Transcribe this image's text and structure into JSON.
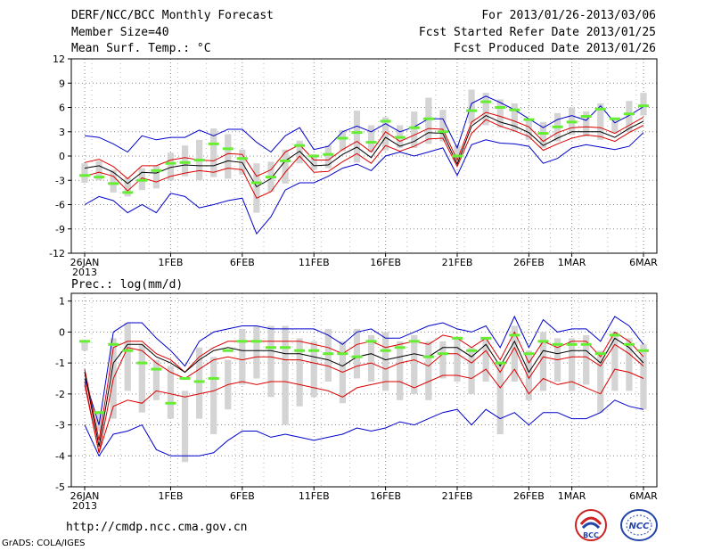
{
  "header": {
    "title": "DERF/NCC/BCC Monthly Forecast",
    "member_size": "Member Size=40",
    "variable1": "Mean Surf. Temp.: °C",
    "period": "For 2013/01/26-2013/03/06",
    "started": "Fcst Started Refer Date 2013/01/25",
    "produced": "Fcst Produced Date 2013/01/26"
  },
  "footer": {
    "url": "http://cmdp.ncc.cma.gov.cn",
    "credit": "GrADS: COLA/IGES",
    "logo_left": "BCC",
    "logo_right": "NCC"
  },
  "colors": {
    "envelope": "#0000cc",
    "spread": "#dd0000",
    "mean": "#000000",
    "box": "#d4d4d4",
    "marker": "#66ee33",
    "grid": "#888888"
  },
  "chart_data": [
    {
      "type": "line",
      "name": "temperature",
      "title": "Mean Surf. Temp.: °C",
      "ylim": [
        -12,
        12
      ],
      "yticks": [
        -12,
        -9,
        -6,
        -3,
        0,
        3,
        6,
        9,
        12
      ],
      "ytick_labels": [
        "-12",
        "-9",
        "-6",
        "-3",
        "0",
        "3",
        "6",
        "9",
        "12"
      ],
      "xtick_labels": [
        {
          "day": 0,
          "label": "26JAN"
        },
        {
          "day": 6,
          "label": "1FEB"
        },
        {
          "day": 11,
          "label": "6FEB"
        },
        {
          "day": 16,
          "label": "11FEB"
        },
        {
          "day": 21,
          "label": "16FEB"
        },
        {
          "day": 26,
          "label": "21FEB"
        },
        {
          "day": 31,
          "label": "26FEB"
        },
        {
          "day": 34,
          "label": "1MAR"
        },
        {
          "day": 39,
          "label": "6MAR"
        }
      ],
      "year_label": "2013",
      "series": [
        {
          "name": "max",
          "values": [
            2.5,
            2.3,
            1.5,
            0.5,
            2.5,
            2,
            2.3,
            2.3,
            3.2,
            2.5,
            3.3,
            3.3,
            1.7,
            0.5,
            2.5,
            3.5,
            0.8,
            1.2,
            3,
            3.7,
            3,
            4,
            3,
            3.6,
            4.6,
            4.6,
            1,
            6.5,
            7.4,
            6.6,
            5.7,
            4.6,
            3.5,
            4.5,
            5,
            4.4,
            6.2,
            4.1,
            5,
            6.1
          ]
        },
        {
          "name": "upper",
          "values": [
            -0.8,
            -0.4,
            -1.3,
            -2.8,
            -1.2,
            -1.2,
            -0.5,
            -0.2,
            -0.5,
            -0.6,
            0.3,
            0.2,
            -2.5,
            -1.7,
            0.5,
            1.4,
            -0.5,
            -0.5,
            0.8,
            1.8,
            0.5,
            3,
            1.8,
            2.6,
            3.4,
            3.3,
            -0.5,
            4.2,
            5.4,
            4.9,
            4.3,
            3.6,
            1.8,
            2.9,
            3.5,
            3.6,
            3.5,
            2.8,
            3.8,
            4.8
          ]
        },
        {
          "name": "mean",
          "values": [
            -1.5,
            -1.2,
            -2,
            -3.4,
            -2,
            -2.1,
            -1.4,
            -1.1,
            -1.2,
            -1.2,
            -0.6,
            -0.8,
            -3.8,
            -2.8,
            -0.6,
            0.6,
            -1.2,
            -1.1,
            0.2,
            1.1,
            -0.2,
            2.3,
            1.2,
            1.8,
            2.9,
            2.8,
            -1,
            3.7,
            5,
            4.2,
            3.7,
            2.9,
            1.3,
            2.2,
            3,
            3,
            3,
            2.3,
            3.4,
            4.3
          ]
        },
        {
          "name": "lower",
          "values": [
            -2.5,
            -2,
            -2.5,
            -4.3,
            -2.7,
            -3.2,
            -2.5,
            -2.1,
            -1.8,
            -2,
            -1.5,
            -1.7,
            -5.2,
            -4.4,
            -2,
            0,
            -2,
            -1.9,
            -0.7,
            0.3,
            -0.9,
            1.3,
            0.6,
            1.2,
            2.1,
            2.2,
            -1.3,
            2.8,
            4.5,
            3.7,
            3.1,
            2.4,
            0.7,
            1.5,
            2.2,
            2.6,
            2.4,
            1.8,
            2.9,
            3.8
          ]
        },
        {
          "name": "min",
          "values": [
            -6,
            -5,
            -5.5,
            -7,
            -6,
            -7,
            -4.6,
            -5,
            -6.4,
            -6,
            -5.5,
            -5.2,
            -9.6,
            -7.5,
            -4.2,
            -3.3,
            -3.3,
            -2.5,
            -1.5,
            -1,
            -1.8,
            0,
            0.5,
            0,
            0.5,
            1,
            -2.4,
            1.4,
            2,
            1.6,
            1.5,
            1.2,
            -0.9,
            -0.3,
            1,
            1.4,
            1.1,
            0.8,
            1.2,
            2.9
          ]
        }
      ],
      "boxes": [
        {
          "low": -3.3,
          "high": -0.9
        },
        {
          "low": -3,
          "high": -0.6
        },
        {
          "low": -4.5,
          "high": -1.7
        },
        {
          "low": -5,
          "high": -2.7
        },
        {
          "low": -4.2,
          "high": -1.5
        },
        {
          "low": -4,
          "high": -1.2
        },
        {
          "low": -3,
          "high": 0.4
        },
        {
          "low": -2.5,
          "high": 1.3
        },
        {
          "low": -3,
          "high": 2
        },
        {
          "low": -2.6,
          "high": 3.4
        },
        {
          "low": -2.8,
          "high": 2.7
        },
        {
          "low": -2.3,
          "high": 0.8
        },
        {
          "low": -7,
          "high": -0.9
        },
        {
          "low": -4.4,
          "high": -0.7
        },
        {
          "low": -3.4,
          "high": 0.8
        },
        {
          "low": -0.9,
          "high": 1.9
        },
        {
          "low": -1.7,
          "high": 0.2
        },
        {
          "low": -1.5,
          "high": 1.3
        },
        {
          "low": 0.6,
          "high": 3.2
        },
        {
          "low": -0.8,
          "high": 5.6
        },
        {
          "low": 0.5,
          "high": 3.8
        },
        {
          "low": 0.7,
          "high": 4.8
        },
        {
          "low": 1,
          "high": 3.8
        },
        {
          "low": 1,
          "high": 5.5
        },
        {
          "low": 1.5,
          "high": 7.2
        },
        {
          "low": 1.8,
          "high": 5.7
        },
        {
          "low": -0.8,
          "high": 1.3
        },
        {
          "low": 4,
          "high": 8.2
        },
        {
          "low": 3.8,
          "high": 7.8
        },
        {
          "low": 3.5,
          "high": 7
        },
        {
          "low": 3,
          "high": 6.5
        },
        {
          "low": 2,
          "high": 4.5
        },
        {
          "low": 1,
          "high": 4.2
        },
        {
          "low": 1.8,
          "high": 5.3
        },
        {
          "low": 2.6,
          "high": 6
        },
        {
          "low": 2.4,
          "high": 5.5
        },
        {
          "low": 2,
          "high": 6.5
        },
        {
          "low": 2.8,
          "high": 4.5
        },
        {
          "low": 3,
          "high": 6.8
        },
        {
          "low": 5,
          "high": 7.8
        }
      ],
      "markers": [
        -2.4,
        -2.6,
        -3.4,
        -4.5,
        -3,
        -1.8,
        -0.9,
        -0.8,
        -0.5,
        1.5,
        0.9,
        -0.3,
        -3.3,
        -2.6,
        -0.6,
        1.3,
        0,
        0.2,
        2.2,
        2.9,
        1.7,
        4.3,
        2.3,
        3.5,
        4.6,
        3,
        0,
        5.6,
        6.7,
        6,
        5.7,
        4.5,
        2.8,
        3.6,
        4.2,
        4.9,
        5.8,
        4.6,
        5.2,
        6.2
      ]
    },
    {
      "type": "line",
      "name": "precipitation",
      "title": "Prec.: log(mm/d)",
      "ylim": [
        -5,
        1.25
      ],
      "yticks": [
        -5,
        -4,
        -3,
        -2,
        -1,
        0,
        1
      ],
      "ytick_labels": [
        "-5",
        "-4",
        "-3",
        "-2",
        "-1",
        "0",
        "1"
      ],
      "xtick_labels": [
        {
          "day": 0,
          "label": "26JAN"
        },
        {
          "day": 6,
          "label": "1FEB"
        },
        {
          "day": 11,
          "label": "6FEB"
        },
        {
          "day": 16,
          "label": "11FEB"
        },
        {
          "day": 21,
          "label": "16FEB"
        },
        {
          "day": 26,
          "label": "21FEB"
        },
        {
          "day": 31,
          "label": "26FEB"
        },
        {
          "day": 34,
          "label": "1MAR"
        },
        {
          "day": 39,
          "label": "6MAR"
        }
      ],
      "year_label": "2013",
      "series": [
        {
          "name": "max",
          "values": [
            -1.5,
            -3,
            0,
            0.3,
            0.3,
            -0.2,
            -0.6,
            -1.1,
            -0.3,
            0,
            0.1,
            0.2,
            0.2,
            0.1,
            0.1,
            0.1,
            0.1,
            -0.1,
            -0.4,
            0,
            0.1,
            -0.2,
            -0.2,
            0,
            0.2,
            0.3,
            0.1,
            0,
            0.2,
            -0.5,
            0.5,
            -0.5,
            0.4,
            0,
            0.1,
            0.1,
            -0.3,
            0.5,
            0.2,
            -0.4
          ]
        },
        {
          "name": "upper",
          "values": [
            -1.2,
            -3.5,
            -0.5,
            -0.3,
            -0.3,
            -0.7,
            -0.9,
            -1.3,
            -0.8,
            -0.5,
            -0.3,
            -0.3,
            -0.3,
            -0.3,
            -0.3,
            -0.3,
            -0.4,
            -0.5,
            -0.7,
            -0.4,
            -0.3,
            -0.5,
            -0.4,
            -0.3,
            -0.4,
            -0.1,
            -0.2,
            -0.5,
            -0.2,
            -0.9,
            0,
            -1,
            -0.3,
            -0.5,
            -0.3,
            -0.3,
            -0.8,
            0,
            -0.3,
            -0.8
          ]
        },
        {
          "name": "mean",
          "values": [
            -1.3,
            -3.7,
            -1,
            -0.4,
            -0.4,
            -0.8,
            -1,
            -1.3,
            -0.9,
            -0.6,
            -0.5,
            -0.6,
            -0.6,
            -0.6,
            -0.7,
            -0.7,
            -0.8,
            -0.9,
            -1.1,
            -0.8,
            -0.7,
            -0.9,
            -0.8,
            -0.7,
            -0.8,
            -0.5,
            -0.5,
            -0.8,
            -0.4,
            -1.1,
            -0.3,
            -1.3,
            -0.6,
            -0.7,
            -0.6,
            -0.6,
            -1,
            -0.2,
            -0.5,
            -1
          ]
        },
        {
          "name": "lower",
          "values": [
            -1.7,
            -3.9,
            -1.5,
            -0.5,
            -0.6,
            -1,
            -1.3,
            -1.5,
            -1.2,
            -0.9,
            -0.8,
            -0.9,
            -0.8,
            -0.8,
            -0.9,
            -0.9,
            -1,
            -1.1,
            -1.3,
            -1.1,
            -1,
            -1.2,
            -1,
            -0.9,
            -1.1,
            -0.7,
            -0.7,
            -1,
            -0.6,
            -1.3,
            -0.5,
            -1.5,
            -0.8,
            -0.9,
            -0.8,
            -0.8,
            -1.1,
            -0.4,
            -0.7,
            -1.1
          ]
        },
        {
          "name": "lower2",
          "values": [
            -1.6,
            -3.9,
            -2.4,
            -2.2,
            -2.3,
            -1.9,
            -2,
            -2.1,
            -2,
            -1.9,
            -1.7,
            -1.6,
            -1.7,
            -1.6,
            -1.6,
            -1.7,
            -1.8,
            -1.9,
            -2.1,
            -1.8,
            -1.7,
            -1.6,
            -1.6,
            -1.8,
            -1.6,
            -1.4,
            -1.4,
            -1.5,
            -1.2,
            -1.8,
            -1.2,
            -2,
            -1.5,
            -1.7,
            -1.6,
            -1.8,
            -2,
            -1.2,
            -1.3,
            -1.5
          ]
        },
        {
          "name": "min",
          "values": [
            -3,
            -4,
            -3.3,
            -3.2,
            -3,
            -3.8,
            -4,
            -4,
            -4,
            -3.9,
            -3.5,
            -3.2,
            -3.2,
            -3.4,
            -3.3,
            -3.4,
            -3.5,
            -3.4,
            -3.3,
            -3.1,
            -3.2,
            -3.1,
            -2.9,
            -3,
            -2.8,
            -2.6,
            -2.5,
            -3,
            -2.5,
            -2.8,
            -2.6,
            -3,
            -2.6,
            -2.6,
            -2.8,
            -2.8,
            -2.6,
            -2.2,
            -2.4,
            -2.5
          ]
        }
      ],
      "boxes": [
        {
          "low": -0.6,
          "high": -0.3
        },
        {
          "low": -3.2,
          "high": -2.6
        },
        {
          "low": -2.8,
          "high": -0.2
        },
        {
          "low": -1.9,
          "high": 0.3
        },
        {
          "low": -2.6,
          "high": -0.4
        },
        {
          "low": -2.2,
          "high": -0.9
        },
        {
          "low": -2.8,
          "high": -1.1
        },
        {
          "low": -4.2,
          "high": -1.9
        },
        {
          "low": -2.8,
          "high": -0.5
        },
        {
          "low": -3.3,
          "high": -0.8
        },
        {
          "low": -2.5,
          "high": -0.9
        },
        {
          "low": -1.7,
          "high": 0.1
        },
        {
          "low": -1.5,
          "high": 0.2
        },
        {
          "low": -2.1,
          "high": 0.2
        },
        {
          "low": -3,
          "high": 0.2
        },
        {
          "low": -2.4,
          "high": -0.2
        },
        {
          "low": -2.1,
          "high": -0.3
        },
        {
          "low": -1.6,
          "high": 0.1
        },
        {
          "low": -2.3,
          "high": -0.3
        },
        {
          "low": -1.5,
          "high": 0.1
        },
        {
          "low": -1.6,
          "high": -0.1
        },
        {
          "low": -1.9,
          "high": 0
        },
        {
          "low": -2.2,
          "high": -0.3
        },
        {
          "low": -2,
          "high": -0.1
        },
        {
          "low": -2.2,
          "high": -0.3
        },
        {
          "low": -1.5,
          "high": -0.3
        },
        {
          "low": -1.6,
          "high": -0.2
        },
        {
          "low": -2,
          "high": -0.5
        },
        {
          "low": -1.6,
          "high": -0.2
        },
        {
          "low": -3.3,
          "high": -1
        },
        {
          "low": -1.6,
          "high": 0.2
        },
        {
          "low": -2.2,
          "high": -0.6
        },
        {
          "low": -1.9,
          "high": 0
        },
        {
          "low": -1.6,
          "high": -0.2
        },
        {
          "low": -1.9,
          "high": -0.2
        },
        {
          "low": -1.7,
          "high": -0.1
        },
        {
          "low": -2.6,
          "high": -0.6
        },
        {
          "low": -1.9,
          "high": 0
        },
        {
          "low": -1.9,
          "high": -0.2
        },
        {
          "low": -2.5,
          "high": -0.4
        }
      ],
      "markers": [
        -0.3,
        -2.6,
        -0.4,
        -0.6,
        -1,
        -1.2,
        -2.3,
        -1.5,
        -1.6,
        -1.5,
        -0.6,
        -0.3,
        -0.3,
        -0.5,
        -0.5,
        -0.6,
        -0.6,
        -0.7,
        -0.7,
        -0.8,
        -0.3,
        -0.6,
        -0.5,
        -0.3,
        -0.8,
        -0.7,
        -0.2,
        -0.6,
        -0.2,
        -1,
        -0.1,
        -0.7,
        -0.3,
        -0.4,
        -0.4,
        -0.4,
        -0.7,
        -0.1,
        -0.4,
        -0.6
      ]
    }
  ]
}
